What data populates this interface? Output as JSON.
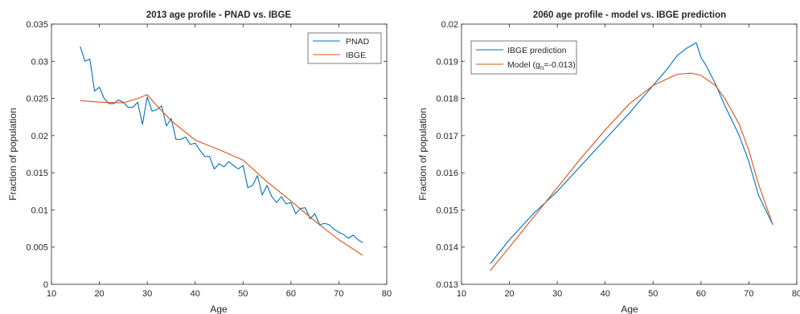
{
  "chart_data": [
    {
      "type": "line",
      "title": "2013 age profile - PNAD vs. IBGE",
      "xlabel": "Age",
      "ylabel": "Fraction of population",
      "xlim": [
        10,
        80
      ],
      "ylim": [
        0,
        0.035
      ],
      "xticks": [
        10,
        20,
        30,
        40,
        50,
        60,
        70,
        80
      ],
      "yticks": [
        0,
        0.005,
        0.01,
        0.015,
        0.02,
        0.025,
        0.03,
        0.035
      ],
      "xtick_labels": [
        "10",
        "20",
        "30",
        "40",
        "50",
        "60",
        "70",
        "80"
      ],
      "ytick_labels": [
        "0",
        "0.005",
        "0.01",
        "0.015",
        "0.02",
        "0.025",
        "0.03",
        "0.035"
      ],
      "grid": false,
      "legend": "top-right",
      "series": [
        {
          "name": "PNAD",
          "color": "#0072BD",
          "x": [
            16,
            17,
            18,
            19,
            20,
            21,
            22,
            23,
            24,
            25,
            26,
            27,
            28,
            29,
            30,
            31,
            32,
            33,
            34,
            35,
            36,
            37,
            38,
            39,
            40,
            41,
            42,
            43,
            44,
            45,
            46,
            47,
            48,
            49,
            50,
            51,
            52,
            53,
            54,
            55,
            56,
            57,
            58,
            59,
            60,
            61,
            62,
            63,
            64,
            65,
            66,
            67,
            68,
            69,
            70,
            71,
            72,
            73,
            74,
            75
          ],
          "y": [
            0.032,
            0.03,
            0.0303,
            0.026,
            0.0265,
            0.025,
            0.0243,
            0.0243,
            0.0248,
            0.0245,
            0.0238,
            0.0238,
            0.0245,
            0.0215,
            0.0252,
            0.0233,
            0.0235,
            0.024,
            0.0213,
            0.0223,
            0.0195,
            0.0195,
            0.0198,
            0.0188,
            0.019,
            0.018,
            0.0172,
            0.0172,
            0.0155,
            0.0162,
            0.0158,
            0.0165,
            0.016,
            0.0155,
            0.016,
            0.013,
            0.0133,
            0.0146,
            0.012,
            0.0133,
            0.0118,
            0.011,
            0.0118,
            0.0108,
            0.011,
            0.0095,
            0.0102,
            0.0103,
            0.0088,
            0.0095,
            0.008,
            0.0082,
            0.008,
            0.0074,
            0.007,
            0.0067,
            0.0062,
            0.0066,
            0.006,
            0.0056
          ]
        },
        {
          "name": "IBGE",
          "color": "#D95319",
          "x": [
            16,
            20,
            25,
            28,
            30,
            32,
            35,
            40,
            45,
            50,
            55,
            60,
            65,
            70,
            75
          ],
          "y": [
            0.0247,
            0.0245,
            0.0244,
            0.025,
            0.0255,
            0.024,
            0.022,
            0.0194,
            0.0181,
            0.0167,
            0.0138,
            0.0112,
            0.0085,
            0.006,
            0.0039
          ]
        }
      ]
    },
    {
      "type": "line",
      "title": "2060 age profile - model vs. IBGE prediction",
      "xlabel": "Age",
      "ylabel": "Fraction of population",
      "xlim": [
        10,
        80
      ],
      "ylim": [
        0.013,
        0.02
      ],
      "xticks": [
        10,
        20,
        30,
        40,
        50,
        60,
        70,
        80
      ],
      "yticks": [
        0.013,
        0.014,
        0.015,
        0.016,
        0.017,
        0.018,
        0.019,
        0.02
      ],
      "xtick_labels": [
        "10",
        "20",
        "30",
        "40",
        "50",
        "60",
        "70",
        "80"
      ],
      "ytick_labels": [
        "0.013",
        "0.014",
        "0.015",
        "0.016",
        "0.017",
        "0.018",
        "0.019",
        "0.02"
      ],
      "grid": false,
      "legend": "top-left",
      "series": [
        {
          "name": "IBGE prediction",
          "color": "#0072BD",
          "x": [
            16,
            20,
            25,
            30,
            35,
            40,
            45,
            50,
            53,
            55,
            57,
            59,
            60,
            61,
            63,
            65,
            68,
            70,
            72,
            75
          ],
          "y": [
            0.01355,
            0.0142,
            0.0149,
            0.0155,
            0.0162,
            0.0169,
            0.0176,
            0.01835,
            0.0188,
            0.01915,
            0.01935,
            0.0195,
            0.0191,
            0.0189,
            0.0184,
            0.0178,
            0.017,
            0.0163,
            0.0154,
            0.0146
          ]
        },
        {
          "name": "Model (g_n=-0.013)",
          "legend_label": "Model (g",
          "legend_sub": "n",
          "legend_tail": "=-0.013)",
          "color": "#D95319",
          "x": [
            16,
            20,
            25,
            30,
            35,
            40,
            45,
            50,
            55,
            58,
            60,
            63,
            65,
            68,
            70,
            72,
            75
          ],
          "y": [
            0.01337,
            0.014,
            0.0148,
            0.0156,
            0.0164,
            0.01715,
            0.01785,
            0.01835,
            0.01865,
            0.01868,
            0.01862,
            0.01835,
            0.018,
            0.0173,
            0.0166,
            0.0157,
            0.0146
          ]
        }
      ]
    }
  ]
}
